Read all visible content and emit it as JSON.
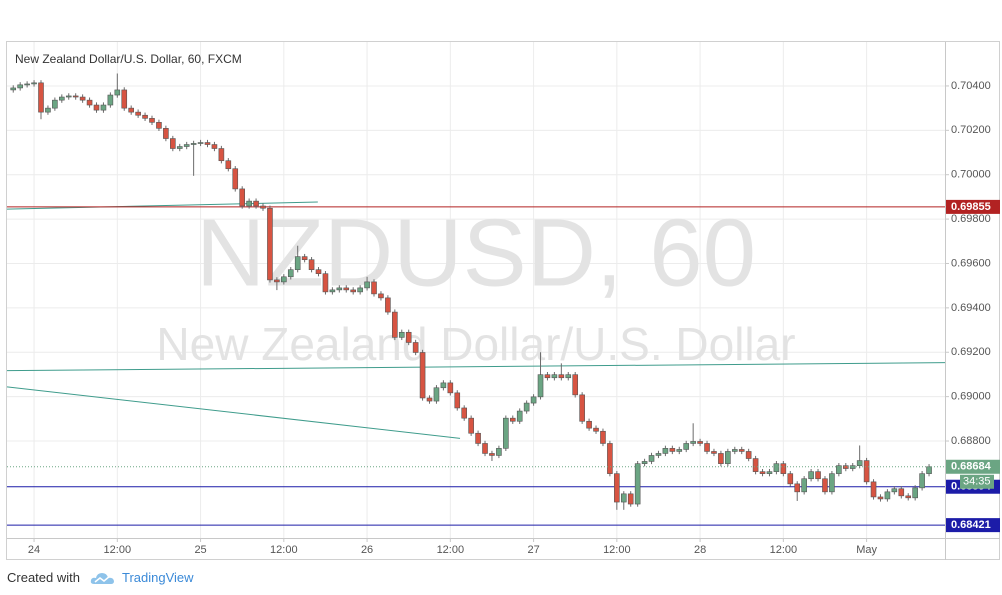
{
  "chart_data": {
    "type": "candlestick",
    "title": "New Zealand Dollar/U.S. Dollar, 60, FXCM",
    "watermark": {
      "symbol": "NZDUSD, 60",
      "description": "New Zealand Dollar/U.S. Dollar"
    },
    "x": [
      -3,
      -2,
      -1,
      0,
      1,
      2,
      3,
      4,
      5,
      6,
      7,
      8,
      9,
      10,
      11,
      12,
      13,
      14,
      15,
      16,
      17,
      18,
      19,
      20,
      21,
      22,
      23,
      24,
      25,
      26,
      27,
      28,
      29,
      30,
      31,
      32,
      33,
      34,
      35,
      36,
      37,
      38,
      39,
      40,
      41,
      42,
      43,
      44,
      45,
      46,
      47,
      48,
      49,
      50,
      51,
      52,
      53,
      54,
      55,
      56,
      57,
      58,
      59,
      60,
      61,
      62,
      63,
      64,
      65,
      66,
      67,
      68,
      69,
      70,
      71,
      72,
      73,
      74,
      75,
      76,
      77,
      78,
      79,
      80,
      81,
      82,
      83,
      84,
      85,
      86,
      87,
      88,
      89,
      90,
      91,
      92,
      93,
      94,
      95,
      96,
      97,
      98,
      99,
      100,
      101,
      102,
      103,
      104,
      105,
      106,
      107,
      108,
      109,
      110,
      111,
      112,
      113,
      114,
      115,
      116,
      117,
      118,
      119,
      120,
      121,
      122,
      123,
      124,
      125,
      126,
      127,
      128,
      129
    ],
    "open": [
      0.70382,
      0.70391,
      0.70405,
      0.70409,
      0.70414,
      0.70282,
      0.703,
      0.70336,
      0.7035,
      0.70355,
      0.7035,
      0.70336,
      0.70314,
      0.70291,
      0.70314,
      0.70359,
      0.70382,
      0.703,
      0.70282,
      0.70268,
      0.70254,
      0.70236,
      0.70209,
      0.70163,
      0.70118,
      0.70127,
      0.70136,
      0.70141,
      0.70145,
      0.70136,
      0.70118,
      0.70063,
      0.70027,
      0.69936,
      0.69859,
      0.69881,
      0.69859,
      0.69849,
      0.69526,
      0.69517,
      0.6954,
      0.69572,
      0.69631,
      0.69617,
      0.69572,
      0.69554,
      0.69472,
      0.69481,
      0.6949,
      0.69481,
      0.69472,
      0.6949,
      0.69517,
      0.69463,
      0.69445,
      0.69381,
      0.69267,
      0.6929,
      0.69244,
      0.69199,
      0.68994,
      0.6898,
      0.6904,
      0.69062,
      0.69017,
      0.68949,
      0.68903,
      0.68835,
      0.68789,
      0.68744,
      0.68735,
      0.68767,
      0.68903,
      0.68889,
      0.68935,
      0.68971,
      0.68999,
      0.69099,
      0.69085,
      0.69099,
      0.69085,
      0.69099,
      0.69008,
      0.68889,
      0.68858,
      0.68844,
      0.68789,
      0.68653,
      0.68525,
      0.68562,
      0.68516,
      0.68698,
      0.68708,
      0.68735,
      0.68744,
      0.68767,
      0.68753,
      0.68762,
      0.68789,
      0.68798,
      0.68789,
      0.68753,
      0.68744,
      0.68698,
      0.68753,
      0.68762,
      0.68753,
      0.68721,
      0.68662,
      0.68653,
      0.68662,
      0.68698,
      0.68653,
      0.68607,
      0.68571,
      0.6863,
      0.68662,
      0.6863,
      0.68571,
      0.68653,
      0.68689,
      0.68676,
      0.68689,
      0.68712,
      0.68616,
      0.68548,
      0.68539,
      0.68571,
      0.68585,
      0.68553,
      0.68544,
      0.68589,
      0.68653
    ],
    "high": [
      0.70403,
      0.70417,
      0.70421,
      0.70426,
      0.70426,
      0.70312,
      0.70348,
      0.70362,
      0.70367,
      0.70367,
      0.70362,
      0.70348,
      0.70326,
      0.70326,
      0.70371,
      0.70456,
      0.70394,
      0.70312,
      0.70294,
      0.7028,
      0.70266,
      0.70248,
      0.70221,
      0.70175,
      0.70139,
      0.70148,
      0.70153,
      0.70157,
      0.70157,
      0.70148,
      0.7013,
      0.70075,
      0.70039,
      0.69948,
      0.69893,
      0.69893,
      0.69871,
      0.69861,
      0.69538,
      0.69552,
      0.69584,
      0.6968,
      0.69643,
      0.69629,
      0.69584,
      0.69566,
      0.69493,
      0.69502,
      0.69502,
      0.69493,
      0.69502,
      0.6954,
      0.69529,
      0.69475,
      0.69457,
      0.69393,
      0.69302,
      0.69302,
      0.69256,
      0.69211,
      0.69006,
      0.69052,
      0.69074,
      0.69074,
      0.69029,
      0.68961,
      0.68915,
      0.68847,
      0.68801,
      0.68756,
      0.68779,
      0.68915,
      0.68915,
      0.68947,
      0.68983,
      0.69011,
      0.692,
      0.69111,
      0.69111,
      0.6915,
      0.69111,
      0.69111,
      0.6902,
      0.68901,
      0.6887,
      0.68856,
      0.68801,
      0.68665,
      0.68574,
      0.68574,
      0.6871,
      0.6872,
      0.68747,
      0.68756,
      0.68779,
      0.68779,
      0.68774,
      0.68801,
      0.6888,
      0.6881,
      0.68801,
      0.68765,
      0.68756,
      0.68765,
      0.68774,
      0.68774,
      0.68765,
      0.68733,
      0.68674,
      0.68674,
      0.6871,
      0.6871,
      0.68665,
      0.68619,
      0.68642,
      0.68674,
      0.68674,
      0.68642,
      0.68665,
      0.68701,
      0.68701,
      0.68701,
      0.6878,
      0.68724,
      0.68628,
      0.6856,
      0.68583,
      0.68597,
      0.68597,
      0.68565,
      0.68601,
      0.68665,
      0.68696
    ],
    "low": [
      0.7037,
      0.70379,
      0.70393,
      0.70397,
      0.7025,
      0.7027,
      0.70288,
      0.70324,
      0.70338,
      0.70338,
      0.70324,
      0.70302,
      0.70279,
      0.70279,
      0.70302,
      0.70347,
      0.70288,
      0.7027,
      0.70256,
      0.70242,
      0.70224,
      0.70197,
      0.70151,
      0.70106,
      0.70106,
      0.70115,
      0.69995,
      0.70129,
      0.70124,
      0.70106,
      0.70051,
      0.70015,
      0.69924,
      0.69847,
      0.69847,
      0.69847,
      0.69837,
      0.69514,
      0.6948,
      0.69505,
      0.69528,
      0.6956,
      0.69605,
      0.6956,
      0.69542,
      0.6946,
      0.6946,
      0.69469,
      0.69469,
      0.6946,
      0.6946,
      0.69478,
      0.69451,
      0.69433,
      0.69369,
      0.69255,
      0.69255,
      0.69232,
      0.69187,
      0.68982,
      0.68968,
      0.68968,
      0.69028,
      0.69005,
      0.68937,
      0.68891,
      0.68823,
      0.68777,
      0.68732,
      0.6871,
      0.68723,
      0.68755,
      0.68877,
      0.68877,
      0.68923,
      0.68959,
      0.68987,
      0.69073,
      0.69073,
      0.69073,
      0.69073,
      0.68996,
      0.68877,
      0.68846,
      0.68832,
      0.68777,
      0.68641,
      0.6849,
      0.6849,
      0.68504,
      0.68504,
      0.68686,
      0.68696,
      0.68723,
      0.68732,
      0.68741,
      0.68741,
      0.6875,
      0.68777,
      0.68777,
      0.68741,
      0.68732,
      0.68686,
      0.68686,
      0.68741,
      0.68741,
      0.68709,
      0.6865,
      0.68641,
      0.68641,
      0.6865,
      0.68641,
      0.68595,
      0.6853,
      0.68559,
      0.68618,
      0.68618,
      0.68559,
      0.68559,
      0.68641,
      0.68664,
      0.68664,
      0.68677,
      0.68604,
      0.68536,
      0.68527,
      0.68527,
      0.68559,
      0.68541,
      0.68532,
      0.68532,
      0.68577,
      0.68641
    ],
    "close": [
      0.70391,
      0.70405,
      0.70409,
      0.70414,
      0.70282,
      0.703,
      0.70336,
      0.7035,
      0.70355,
      0.7035,
      0.70336,
      0.70314,
      0.70291,
      0.70314,
      0.70359,
      0.70382,
      0.703,
      0.70282,
      0.70268,
      0.70254,
      0.70236,
      0.70209,
      0.70163,
      0.70118,
      0.70127,
      0.70136,
      0.70141,
      0.70145,
      0.70136,
      0.70118,
      0.70063,
      0.70027,
      0.69936,
      0.69859,
      0.69881,
      0.69859,
      0.69849,
      0.69526,
      0.69517,
      0.6954,
      0.69572,
      0.69631,
      0.69617,
      0.69572,
      0.69554,
      0.69472,
      0.69481,
      0.6949,
      0.69481,
      0.69472,
      0.6949,
      0.69517,
      0.69463,
      0.69445,
      0.69381,
      0.69267,
      0.6929,
      0.69244,
      0.69199,
      0.68994,
      0.6898,
      0.6904,
      0.69062,
      0.69017,
      0.68949,
      0.68903,
      0.68835,
      0.68789,
      0.68744,
      0.68735,
      0.68767,
      0.68903,
      0.68889,
      0.68935,
      0.68971,
      0.68999,
      0.69099,
      0.69085,
      0.69099,
      0.69085,
      0.69099,
      0.69008,
      0.68889,
      0.68858,
      0.68844,
      0.68789,
      0.68653,
      0.68525,
      0.68562,
      0.68516,
      0.68698,
      0.68708,
      0.68735,
      0.68744,
      0.68767,
      0.68753,
      0.68762,
      0.68789,
      0.68798,
      0.68789,
      0.68753,
      0.68744,
      0.68698,
      0.68753,
      0.68762,
      0.68753,
      0.68721,
      0.68662,
      0.68653,
      0.68662,
      0.68698,
      0.68653,
      0.68607,
      0.68571,
      0.6863,
      0.68662,
      0.6863,
      0.68571,
      0.68653,
      0.68689,
      0.68676,
      0.68689,
      0.68712,
      0.68616,
      0.68548,
      0.68539,
      0.68571,
      0.68585,
      0.68553,
      0.68544,
      0.68589,
      0.68653,
      0.68684
    ],
    "up_color": "#6ba583",
    "down_color": "#d75442",
    "xlim": [
      -3.9,
      131.3
    ],
    "xticks": [
      {
        "value": 0,
        "label": "24"
      },
      {
        "value": 12,
        "label": "12:00"
      },
      {
        "value": 24,
        "label": "25"
      },
      {
        "value": 36,
        "label": "12:00"
      },
      {
        "value": 48,
        "label": "26"
      },
      {
        "value": 60,
        "label": "12:00"
      },
      {
        "value": 72,
        "label": "27"
      },
      {
        "value": 84,
        "label": "12:00"
      },
      {
        "value": 96,
        "label": "28"
      },
      {
        "value": 108,
        "label": "12:00"
      },
      {
        "value": 120,
        "label": "May"
      }
    ],
    "ylim": [
      0.68363,
      0.70598
    ],
    "yticks": [
      {
        "value": 0.704,
        "label": "0.70400"
      },
      {
        "value": 0.702,
        "label": "0.70200"
      },
      {
        "value": 0.7,
        "label": "0.70000"
      },
      {
        "value": 0.698,
        "label": "0.69800"
      },
      {
        "value": 0.696,
        "label": "0.69600"
      },
      {
        "value": 0.694,
        "label": "0.69400"
      },
      {
        "value": 0.692,
        "label": "0.69200"
      },
      {
        "value": 0.69,
        "label": "0.69000"
      },
      {
        "value": 0.688,
        "label": "0.68800"
      }
    ],
    "grid": true,
    "levels": [
      {
        "value": 0.69855,
        "color": "#b22222"
      },
      {
        "value": 0.68594,
        "color": "#1c1ca8"
      },
      {
        "value": 0.68421,
        "color": "#1c1ca8"
      }
    ],
    "trend_color": "#3f9c8c",
    "trend_lines": [
      {
        "x": [
          -3.9,
          40.9
        ],
        "y": [
          0.69845,
          0.69877
        ]
      },
      {
        "x": [
          -3.9,
          131.3
        ],
        "y": [
          0.69117,
          0.69153
        ]
      },
      {
        "x": [
          -3.9,
          61.4
        ],
        "y": [
          0.69044,
          0.68812
        ]
      }
    ],
    "countdown": "34:35"
  },
  "footer": {
    "created_with": "Created with",
    "brand": "TradingView"
  }
}
